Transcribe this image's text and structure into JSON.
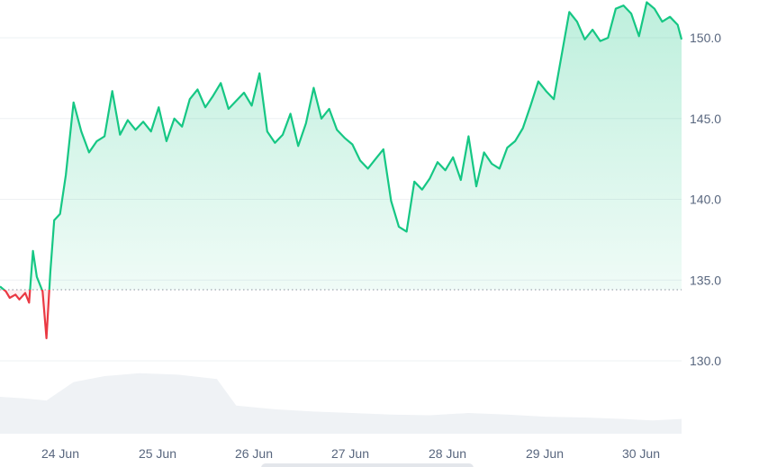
{
  "chart_data": {
    "type": "line",
    "title": "",
    "xlabel": "",
    "ylabel": "",
    "ylim": [
      129.2,
      152.3
    ],
    "y_ticks": [
      "150.0",
      "145.0",
      "140.0",
      "135.0",
      "130.0"
    ],
    "y_tick_values": [
      150.0,
      145.0,
      140.0,
      135.0,
      130.0
    ],
    "x_ticks": [
      "24 Jun",
      "25 Jun",
      "26 Jun",
      "27 Jun",
      "28 Jun",
      "29 Jun",
      "30 Jun"
    ],
    "x_tick_days": [
      1.0,
      2.0,
      3.0,
      4.0,
      5.0,
      6.0,
      7.0
    ],
    "baseline": 134.4,
    "grid": true,
    "legend": "none",
    "colors": {
      "up_line": "#16c784",
      "down_line": "#ea3943",
      "fill_top": "#16c784",
      "volume_fill": "#eff2f5"
    },
    "series": [
      {
        "points": [
          [
            0.38,
            134.6
          ],
          [
            0.41,
            134.3
          ],
          [
            0.43,
            133.9
          ],
          [
            0.46,
            134.1
          ],
          [
            0.48,
            133.8
          ],
          [
            0.51,
            134.2
          ],
          [
            0.53,
            133.6
          ],
          [
            0.55,
            136.8
          ],
          [
            0.57,
            135.2
          ],
          [
            0.6,
            134.3
          ],
          [
            0.62,
            131.4
          ],
          [
            0.64,
            135.5
          ],
          [
            0.66,
            138.7
          ],
          [
            0.69,
            139.1
          ],
          [
            0.72,
            141.5
          ],
          [
            0.76,
            146.0
          ],
          [
            0.8,
            144.2
          ],
          [
            0.84,
            142.9
          ],
          [
            0.88,
            143.6
          ],
          [
            0.92,
            143.9
          ],
          [
            0.96,
            146.7
          ],
          [
            1.0,
            144.0
          ],
          [
            1.04,
            144.9
          ],
          [
            1.08,
            144.3
          ],
          [
            1.12,
            144.8
          ],
          [
            1.16,
            144.2
          ],
          [
            1.2,
            145.7
          ],
          [
            1.24,
            143.6
          ],
          [
            1.28,
            145.0
          ],
          [
            1.32,
            144.5
          ],
          [
            1.36,
            146.2
          ],
          [
            1.4,
            146.8
          ],
          [
            1.44,
            145.7
          ],
          [
            1.48,
            146.4
          ],
          [
            1.52,
            147.2
          ],
          [
            1.56,
            145.6
          ],
          [
            1.6,
            146.1
          ],
          [
            1.64,
            146.6
          ],
          [
            1.68,
            145.8
          ],
          [
            1.72,
            147.8
          ],
          [
            1.76,
            144.2
          ],
          [
            1.8,
            143.5
          ],
          [
            1.84,
            144.0
          ],
          [
            1.88,
            145.3
          ],
          [
            1.92,
            143.3
          ],
          [
            1.96,
            144.7
          ],
          [
            2.0,
            146.9
          ],
          [
            2.04,
            145.0
          ],
          [
            2.08,
            145.6
          ],
          [
            2.12,
            144.3
          ],
          [
            2.16,
            143.8
          ],
          [
            2.2,
            143.4
          ],
          [
            2.24,
            142.4
          ],
          [
            2.28,
            141.9
          ],
          [
            2.32,
            142.5
          ],
          [
            2.36,
            143.1
          ],
          [
            2.4,
            139.9
          ],
          [
            2.44,
            138.3
          ],
          [
            2.48,
            138.0
          ],
          [
            2.52,
            141.1
          ],
          [
            2.56,
            140.6
          ],
          [
            2.6,
            141.3
          ],
          [
            2.64,
            142.3
          ],
          [
            2.68,
            141.8
          ],
          [
            2.72,
            142.6
          ],
          [
            2.76,
            141.2
          ],
          [
            2.8,
            143.9
          ],
          [
            2.84,
            140.8
          ],
          [
            2.88,
            142.9
          ],
          [
            2.92,
            142.2
          ],
          [
            2.96,
            141.9
          ],
          [
            3.0,
            143.2
          ],
          [
            3.04,
            143.6
          ],
          [
            3.08,
            144.4
          ],
          [
            3.12,
            145.8
          ],
          [
            3.16,
            147.3
          ],
          [
            3.2,
            146.7
          ],
          [
            3.24,
            146.2
          ],
          [
            3.28,
            148.9
          ],
          [
            3.32,
            151.6
          ],
          [
            3.36,
            151.0
          ],
          [
            3.4,
            149.9
          ],
          [
            3.44,
            150.5
          ],
          [
            3.48,
            149.8
          ],
          [
            3.52,
            150.0
          ],
          [
            3.56,
            151.8
          ],
          [
            3.6,
            152.0
          ],
          [
            3.64,
            151.5
          ],
          [
            3.68,
            150.1
          ],
          [
            3.72,
            152.2
          ],
          [
            3.76,
            151.8
          ],
          [
            3.8,
            151.0
          ],
          [
            3.84,
            151.3
          ],
          [
            3.88,
            150.8
          ],
          [
            3.9,
            149.9
          ]
        ]
      }
    ],
    "volume": [
      [
        0.38,
        0.5
      ],
      [
        0.5,
        0.48
      ],
      [
        0.62,
        0.45
      ],
      [
        0.76,
        0.7
      ],
      [
        0.92,
        0.78
      ],
      [
        1.1,
        0.82
      ],
      [
        1.3,
        0.8
      ],
      [
        1.5,
        0.74
      ],
      [
        1.6,
        0.38
      ],
      [
        1.8,
        0.33
      ],
      [
        2.0,
        0.3
      ],
      [
        2.2,
        0.28
      ],
      [
        2.4,
        0.26
      ],
      [
        2.6,
        0.25
      ],
      [
        2.8,
        0.28
      ],
      [
        3.0,
        0.26
      ],
      [
        3.2,
        0.23
      ],
      [
        3.4,
        0.22
      ],
      [
        3.6,
        0.2
      ],
      [
        3.75,
        0.18
      ],
      [
        3.9,
        0.2
      ]
    ]
  }
}
